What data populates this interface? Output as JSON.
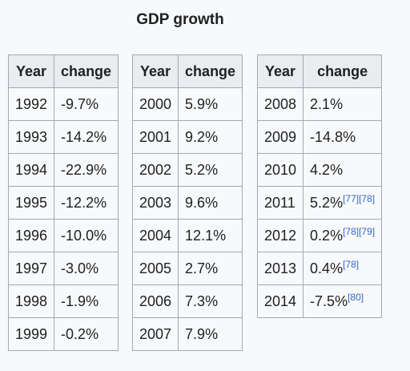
{
  "title": "GDP growth",
  "headers": {
    "year": "Year",
    "change": "change"
  },
  "tables": [
    {
      "rows": [
        {
          "year": "1992",
          "change": "-9.7%",
          "refs": ""
        },
        {
          "year": "1993",
          "change": "-14.2%",
          "refs": ""
        },
        {
          "year": "1994",
          "change": "-22.9%",
          "refs": ""
        },
        {
          "year": "1995",
          "change": "-12.2%",
          "refs": ""
        },
        {
          "year": "1996",
          "change": "-10.0%",
          "refs": ""
        },
        {
          "year": "1997",
          "change": "-3.0%",
          "refs": ""
        },
        {
          "year": "1998",
          "change": "-1.9%",
          "refs": ""
        },
        {
          "year": "1999",
          "change": "-0.2%",
          "refs": ""
        }
      ]
    },
    {
      "rows": [
        {
          "year": "2000",
          "change": "5.9%",
          "refs": ""
        },
        {
          "year": "2001",
          "change": "9.2%",
          "refs": ""
        },
        {
          "year": "2002",
          "change": "5.2%",
          "refs": ""
        },
        {
          "year": "2003",
          "change": "9.6%",
          "refs": ""
        },
        {
          "year": "2004",
          "change": "12.1%",
          "refs": ""
        },
        {
          "year": "2005",
          "change": "2.7%",
          "refs": ""
        },
        {
          "year": "2006",
          "change": "7.3%",
          "refs": ""
        },
        {
          "year": "2007",
          "change": "7.9%",
          "refs": ""
        }
      ]
    },
    {
      "rows": [
        {
          "year": "2008",
          "change": "2.1%",
          "refs": ""
        },
        {
          "year": "2009",
          "change": "-14.8%",
          "refs": ""
        },
        {
          "year": "2010",
          "change": "4.2%",
          "refs": ""
        },
        {
          "year": "2011",
          "change": "5.2%",
          "refs": "[77][78]"
        },
        {
          "year": "2012",
          "change": "0.2%",
          "refs": "[78][79]"
        },
        {
          "year": "2013",
          "change": "0.4%",
          "refs": "[78]"
        },
        {
          "year": "2014",
          "change": "-7.5%",
          "refs": "[80]"
        }
      ]
    }
  ]
}
